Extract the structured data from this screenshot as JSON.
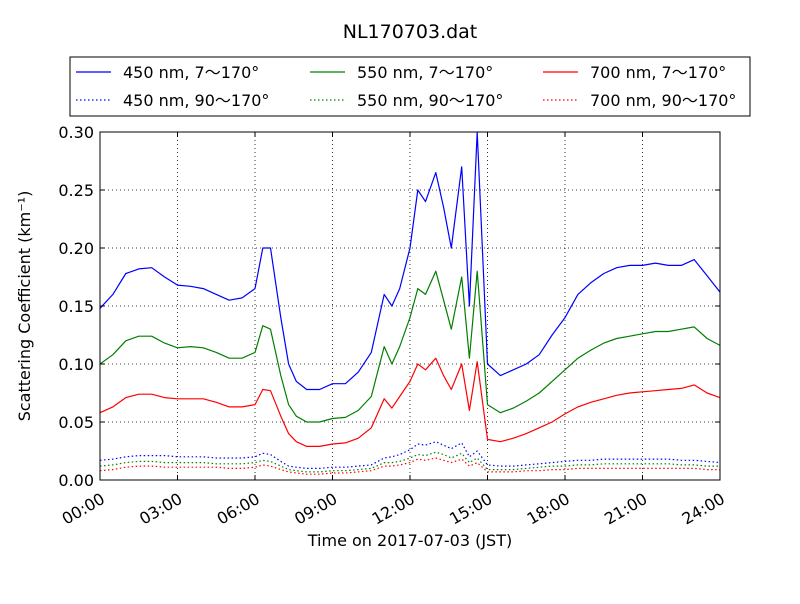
{
  "chart_data": {
    "type": "line",
    "title": "NL170703.dat",
    "xlabel": "Time on 2017-07-03 (JST)",
    "ylabel": "Scattering Coefficient (km⁻¹)",
    "xlim": [
      0,
      24
    ],
    "ylim": [
      0,
      0.3
    ],
    "x_ticks": [
      "00:00",
      "03:00",
      "06:00",
      "09:00",
      "12:00",
      "15:00",
      "18:00",
      "21:00",
      "24:00"
    ],
    "y_ticks": [
      "0.00",
      "0.05",
      "0.10",
      "0.15",
      "0.20",
      "0.25",
      "0.30"
    ],
    "grid": true,
    "legend_position": "top",
    "x_hours": [
      0,
      0.5,
      1,
      1.5,
      2,
      2.5,
      3,
      3.5,
      4,
      4.5,
      5,
      5.5,
      6,
      6.3,
      6.6,
      7,
      7.3,
      7.6,
      8,
      8.5,
      9,
      9.5,
      10,
      10.5,
      11,
      11.3,
      11.6,
      12,
      12.3,
      12.6,
      13,
      13.3,
      13.6,
      14,
      14.3,
      14.6,
      15,
      15.5,
      16,
      16.5,
      17,
      17.5,
      18,
      18.5,
      19,
      19.5,
      20,
      20.5,
      21,
      21.5,
      22,
      22.5,
      23,
      23.5,
      24
    ],
    "series": [
      {
        "name": "450 nm, 7～170°",
        "color": "#0000ff",
        "dash": "solid",
        "values": [
          0.148,
          0.16,
          0.178,
          0.182,
          0.183,
          0.175,
          0.168,
          0.167,
          0.165,
          0.16,
          0.155,
          0.157,
          0.165,
          0.2,
          0.2,
          0.14,
          0.1,
          0.085,
          0.078,
          0.078,
          0.083,
          0.083,
          0.093,
          0.11,
          0.16,
          0.15,
          0.165,
          0.2,
          0.25,
          0.24,
          0.265,
          0.235,
          0.2,
          0.27,
          0.15,
          0.3,
          0.1,
          0.09,
          0.095,
          0.1,
          0.108,
          0.125,
          0.14,
          0.16,
          0.17,
          0.178,
          0.183,
          0.185,
          0.185,
          0.187,
          0.185,
          0.185,
          0.19,
          0.176,
          0.162
        ]
      },
      {
        "name": "450 nm, 90～170°",
        "color": "#0000ff",
        "dash": "dotted",
        "values": [
          0.017,
          0.018,
          0.02,
          0.021,
          0.021,
          0.021,
          0.02,
          0.02,
          0.02,
          0.019,
          0.019,
          0.019,
          0.02,
          0.023,
          0.022,
          0.016,
          0.012,
          0.011,
          0.01,
          0.01,
          0.011,
          0.011,
          0.012,
          0.013,
          0.019,
          0.02,
          0.022,
          0.026,
          0.031,
          0.03,
          0.033,
          0.03,
          0.027,
          0.032,
          0.02,
          0.025,
          0.013,
          0.012,
          0.012,
          0.013,
          0.014,
          0.015,
          0.016,
          0.017,
          0.017,
          0.018,
          0.018,
          0.018,
          0.018,
          0.018,
          0.018,
          0.017,
          0.017,
          0.016,
          0.015
        ]
      },
      {
        "name": "550 nm, 7～170°",
        "color": "#008000",
        "dash": "solid",
        "values": [
          0.1,
          0.108,
          0.12,
          0.124,
          0.124,
          0.118,
          0.114,
          0.115,
          0.114,
          0.11,
          0.105,
          0.105,
          0.11,
          0.133,
          0.13,
          0.09,
          0.065,
          0.055,
          0.05,
          0.05,
          0.053,
          0.054,
          0.06,
          0.072,
          0.115,
          0.1,
          0.115,
          0.14,
          0.165,
          0.16,
          0.18,
          0.155,
          0.13,
          0.175,
          0.105,
          0.18,
          0.065,
          0.058,
          0.062,
          0.068,
          0.075,
          0.085,
          0.095,
          0.105,
          0.112,
          0.118,
          0.122,
          0.124,
          0.126,
          0.128,
          0.128,
          0.13,
          0.132,
          0.122,
          0.116
        ]
      },
      {
        "name": "550 nm, 90～170°",
        "color": "#008000",
        "dash": "dotted",
        "values": [
          0.012,
          0.013,
          0.015,
          0.016,
          0.016,
          0.015,
          0.015,
          0.015,
          0.015,
          0.014,
          0.014,
          0.014,
          0.015,
          0.017,
          0.016,
          0.012,
          0.009,
          0.008,
          0.007,
          0.007,
          0.008,
          0.008,
          0.009,
          0.01,
          0.015,
          0.015,
          0.016,
          0.019,
          0.022,
          0.021,
          0.024,
          0.022,
          0.019,
          0.023,
          0.015,
          0.019,
          0.009,
          0.009,
          0.009,
          0.01,
          0.011,
          0.012,
          0.012,
          0.013,
          0.013,
          0.014,
          0.014,
          0.014,
          0.014,
          0.014,
          0.014,
          0.013,
          0.013,
          0.012,
          0.012
        ]
      },
      {
        "name": "700 nm, 7～170°",
        "color": "#ff0000",
        "dash": "solid",
        "values": [
          0.058,
          0.063,
          0.071,
          0.074,
          0.074,
          0.071,
          0.07,
          0.07,
          0.07,
          0.067,
          0.063,
          0.063,
          0.065,
          0.078,
          0.077,
          0.055,
          0.04,
          0.033,
          0.029,
          0.029,
          0.031,
          0.032,
          0.036,
          0.045,
          0.07,
          0.062,
          0.072,
          0.085,
          0.1,
          0.095,
          0.105,
          0.09,
          0.078,
          0.1,
          0.06,
          0.102,
          0.035,
          0.033,
          0.036,
          0.04,
          0.045,
          0.05,
          0.057,
          0.063,
          0.067,
          0.07,
          0.073,
          0.075,
          0.076,
          0.077,
          0.078,
          0.079,
          0.082,
          0.075,
          0.071
        ]
      },
      {
        "name": "700 nm, 90～170°",
        "color": "#ff0000",
        "dash": "dotted",
        "values": [
          0.008,
          0.009,
          0.011,
          0.012,
          0.012,
          0.011,
          0.011,
          0.011,
          0.011,
          0.011,
          0.01,
          0.01,
          0.011,
          0.013,
          0.012,
          0.009,
          0.007,
          0.006,
          0.005,
          0.005,
          0.006,
          0.006,
          0.007,
          0.008,
          0.012,
          0.012,
          0.013,
          0.015,
          0.018,
          0.017,
          0.019,
          0.017,
          0.015,
          0.018,
          0.012,
          0.015,
          0.007,
          0.007,
          0.007,
          0.008,
          0.008,
          0.009,
          0.009,
          0.01,
          0.01,
          0.01,
          0.01,
          0.01,
          0.01,
          0.01,
          0.01,
          0.01,
          0.01,
          0.009,
          0.009
        ]
      }
    ]
  }
}
